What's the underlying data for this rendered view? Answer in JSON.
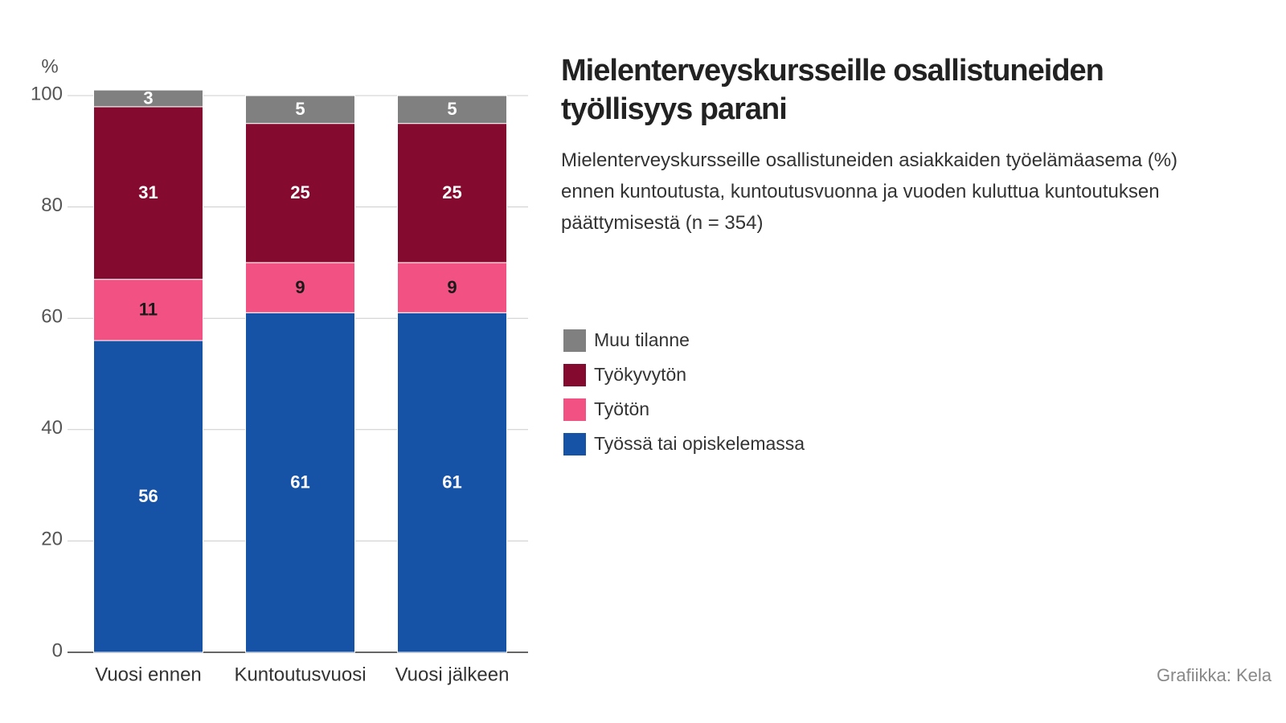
{
  "chart_data": {
    "type": "stacked-bar",
    "title": "Mielenterveyskursseille osallistuneiden työllisyys parani",
    "subtitle": "Mielenterveyskursseille osallistuneiden asiakkaiden työelämäasema (%) ennen kuntoutusta, kuntoutusvuonna ja vuoden kuluttua kuntoutuksen päättymisestä (n = 354)",
    "y_unit": "%",
    "source": "Grafiikka: Kela",
    "categories": [
      "Vuosi ennen",
      "Kuntoutusvuosi",
      "Vuosi jälkeen"
    ],
    "series": [
      {
        "name": "Työssä tai opiskelemassa",
        "color": "#1652a6",
        "label_color": "#ffffff",
        "values": [
          56,
          61,
          61
        ]
      },
      {
        "name": "Työtön",
        "color": "#f15283",
        "label_color": "#1a1a1a",
        "values": [
          11,
          9,
          9
        ]
      },
      {
        "name": "Työkyvytön",
        "color": "#850a30",
        "label_color": "#ffffff",
        "values": [
          31,
          25,
          25
        ]
      },
      {
        "name": "Muu tilanne",
        "color": "#808080",
        "label_color": "#ffffff",
        "values": [
          3,
          5,
          5
        ]
      }
    ],
    "ylim": [
      0,
      100
    ],
    "yticks": [
      0,
      20,
      40,
      60,
      80,
      100
    ],
    "grid": true
  }
}
